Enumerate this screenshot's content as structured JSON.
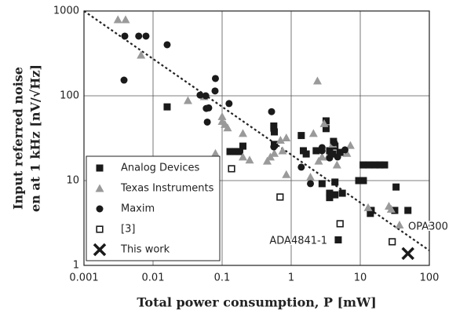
{
  "chart_data": {
    "type": "scatter",
    "xlabel": "Total power consumption, P [mW]",
    "ylabel": [
      "Input referred noise",
      "en at 1 kHz [nV/√Hz]"
    ],
    "log_x": true,
    "log_y": true,
    "grid": true,
    "legend": "lower left",
    "xlim": [
      0.001,
      100
    ],
    "ylim": [
      1,
      1000
    ],
    "xticks": [
      0.001,
      0.01,
      0.1,
      1,
      10,
      100
    ],
    "yticks": [
      1,
      10,
      100,
      1000
    ],
    "annotations": [
      "ADA4841-1",
      "OPA300"
    ],
    "trend_line": {
      "x": [
        0.001,
        100
      ],
      "values": [
        1000,
        1.5
      ],
      "color": "#222"
    },
    "series": [
      {
        "name": "Analog Devices",
        "marker": "square",
        "color": "#1a1a1a",
        "x": [
          0.016,
          0.13,
          0.156,
          0.18,
          0.2,
          0.56,
          0.57,
          0.57,
          1.4,
          1.5,
          1.65,
          2.3,
          3.2,
          3.2,
          3.6,
          4.0,
          4.1,
          4.3,
          5.1,
          2.8,
          3.6,
          3.6,
          4.3,
          5.5,
          4.3,
          9.5,
          11.1,
          11,
          13.3,
          16.4,
          19.2,
          22.5,
          14.4,
          31.6,
          33,
          49,
          4.8,
          14
        ],
        "values": [
          74,
          22,
          22,
          22,
          25.5,
          44,
          37.5,
          26.7,
          34,
          22.5,
          20.6,
          22.5,
          41,
          50.6,
          22.5,
          20.6,
          29,
          25.5,
          21.5,
          9.2,
          7.1,
          6.3,
          6.8,
          7.1,
          9.6,
          10,
          10,
          15.3,
          15.3,
          15.3,
          15.3,
          15.3,
          4.45,
          4.45,
          8.4,
          4.45,
          2.0,
          4.1
        ]
      },
      {
        "name": "Texas Instruments",
        "marker": "triangle",
        "color": "#9a9a9a",
        "x": [
          0.0031,
          0.004,
          0.0067,
          0.032,
          0.055,
          0.08,
          0.1,
          0.11,
          0.12,
          0.1,
          0.2,
          0.25,
          0.2,
          0.45,
          0.5,
          0.57,
          0.7,
          0.85,
          0.75,
          0.85,
          1.9,
          2.1,
          2.4,
          2.5,
          2.8,
          3.0,
          3.4,
          4.0,
          4.6,
          6.4,
          7.2,
          13,
          26,
          28,
          37
        ],
        "values": [
          790,
          790,
          302,
          88,
          98,
          21,
          57,
          46,
          42,
          50,
          19,
          17.5,
          36,
          17,
          19,
          21,
          30,
          32,
          22.5,
          11.8,
          11,
          36,
          150,
          17,
          19,
          47,
          19,
          27,
          15.3,
          21,
          26,
          4.8,
          5,
          4.6,
          3.0
        ]
      },
      {
        "name": "Maxim",
        "marker": "circle",
        "color": "#1a1a1a",
        "x": [
          0.0039,
          0.0038,
          0.0062,
          0.0079,
          0.016,
          0.048,
          0.058,
          0.059,
          0.061,
          0.064,
          0.08,
          0.079,
          0.126,
          0.52,
          0.56,
          0.56,
          1.4,
          1.9,
          2.8,
          3.6,
          4.2,
          4.7,
          6,
          2.8,
          3.6
        ],
        "values": [
          506,
          153,
          506,
          506,
          400,
          102,
          100,
          71,
          49,
          72,
          160,
          114,
          81,
          65,
          39,
          25,
          14.4,
          9.2,
          24.5,
          22,
          28,
          19,
          23,
          22.5,
          18.5
        ]
      },
      {
        "name": "[3]",
        "marker": "open-square",
        "color": "#1a1a1a",
        "x": [
          0.137,
          0.69,
          5.1,
          29
        ],
        "values": [
          13.8,
          6.4,
          3.1,
          1.9
        ]
      },
      {
        "name": "This work",
        "marker": "x",
        "color": "#1a1a1a",
        "x": [
          49
        ],
        "values": [
          1.38
        ]
      }
    ]
  }
}
